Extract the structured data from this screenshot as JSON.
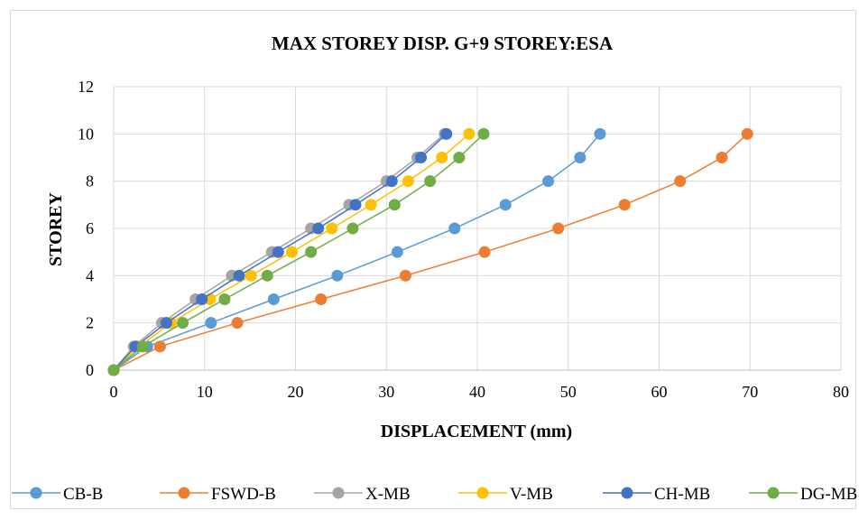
{
  "colors": {
    "grid": "#d9d9d9",
    "axis": "#bfbfbf",
    "frame": "#d9d9d9",
    "series": [
      "#5b9bd5",
      "#ed7d31",
      "#a5a5a5",
      "#ffc000",
      "#4472c4",
      "#70ad47"
    ]
  },
  "chart_data": {
    "type": "line",
    "title": "MAX STOREY DISP. G+9 STOREY:ESA",
    "xlabel": "DISPLACEMENT (mm)",
    "ylabel": "STOREY",
    "xlim": [
      0,
      80
    ],
    "ylim": [
      0,
      12
    ],
    "xticks": [
      0,
      10,
      20,
      30,
      40,
      50,
      60,
      70,
      80
    ],
    "yticks": [
      0,
      2,
      4,
      6,
      8,
      10,
      12
    ],
    "grid": true,
    "legend_position": "bottom",
    "series": [
      {
        "name": "CB-B",
        "points": [
          [
            0,
            0
          ],
          [
            3.7,
            1
          ],
          [
            10.7,
            2
          ],
          [
            17.6,
            3
          ],
          [
            24.6,
            4
          ],
          [
            31.2,
            5
          ],
          [
            37.5,
            6
          ],
          [
            43.1,
            7
          ],
          [
            47.8,
            8
          ],
          [
            51.3,
            9
          ],
          [
            53.5,
            10
          ]
        ]
      },
      {
        "name": "FSWD-B",
        "points": [
          [
            0,
            0
          ],
          [
            5.1,
            1
          ],
          [
            13.6,
            2
          ],
          [
            22.8,
            3
          ],
          [
            32.1,
            4
          ],
          [
            40.8,
            5
          ],
          [
            48.9,
            6
          ],
          [
            56.2,
            7
          ],
          [
            62.3,
            8
          ],
          [
            66.9,
            9
          ],
          [
            69.7,
            10
          ]
        ]
      },
      {
        "name": "X-MB",
        "points": [
          [
            0,
            0
          ],
          [
            2.2,
            1
          ],
          [
            5.3,
            2
          ],
          [
            9.0,
            3
          ],
          [
            13.0,
            4
          ],
          [
            17.4,
            5
          ],
          [
            21.7,
            6
          ],
          [
            25.9,
            7
          ],
          [
            30.0,
            8
          ],
          [
            33.4,
            9
          ],
          [
            36.4,
            10
          ]
        ]
      },
      {
        "name": "V-MB",
        "points": [
          [
            0,
            0
          ],
          [
            2.8,
            1
          ],
          [
            6.3,
            2
          ],
          [
            10.6,
            3
          ],
          [
            15.1,
            4
          ],
          [
            19.6,
            5
          ],
          [
            24.0,
            6
          ],
          [
            28.3,
            7
          ],
          [
            32.4,
            8
          ],
          [
            36.1,
            9
          ],
          [
            39.1,
            10
          ]
        ]
      },
      {
        "name": "CH-MB",
        "points": [
          [
            0,
            0
          ],
          [
            2.4,
            1
          ],
          [
            5.8,
            2
          ],
          [
            9.7,
            3
          ],
          [
            13.8,
            4
          ],
          [
            18.1,
            5
          ],
          [
            22.5,
            6
          ],
          [
            26.6,
            7
          ],
          [
            30.6,
            8
          ],
          [
            33.8,
            9
          ],
          [
            36.6,
            10
          ]
        ]
      },
      {
        "name": "DG-MB",
        "points": [
          [
            0,
            0
          ],
          [
            3.2,
            1
          ],
          [
            7.6,
            2
          ],
          [
            12.2,
            3
          ],
          [
            16.9,
            4
          ],
          [
            21.7,
            5
          ],
          [
            26.3,
            6
          ],
          [
            30.9,
            7
          ],
          [
            34.8,
            8
          ],
          [
            38.0,
            9
          ],
          [
            40.7,
            10
          ]
        ]
      }
    ]
  }
}
